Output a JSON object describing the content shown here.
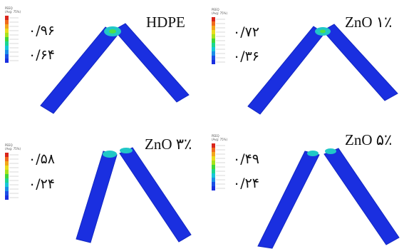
{
  "panels": [
    {
      "title": "HDPE",
      "max": "۰/۹۶",
      "mid": "۰/۶۴"
    },
    {
      "title": "ZnO ۱٪",
      "max": "۰/۷۲",
      "mid": "۰/۳۶"
    },
    {
      "title": "ZnO ۳٪",
      "max": "۰/۵۸",
      "mid": "۰/۲۴"
    },
    {
      "title": "ZnO ۵٪",
      "max": "۰/۴۹",
      "mid": "۰/۲۴"
    }
  ],
  "legend": {
    "label_line1": "PEEQ",
    "label_line2": "(Avg: 75%)"
  },
  "colors": {
    "specimen": "#1a2fe0",
    "specimen_dark": "#1227c2",
    "stress_mid": "#21c7c7",
    "stress_high": "#4be04b",
    "contour": [
      "#d9261c",
      "#f06a1d",
      "#f2a61b",
      "#e9dc1c",
      "#a6e21c",
      "#3fd83a",
      "#1bd68f",
      "#16c6d8",
      "#1b8ee8",
      "#1b4fe6",
      "#1a2fe0"
    ]
  }
}
